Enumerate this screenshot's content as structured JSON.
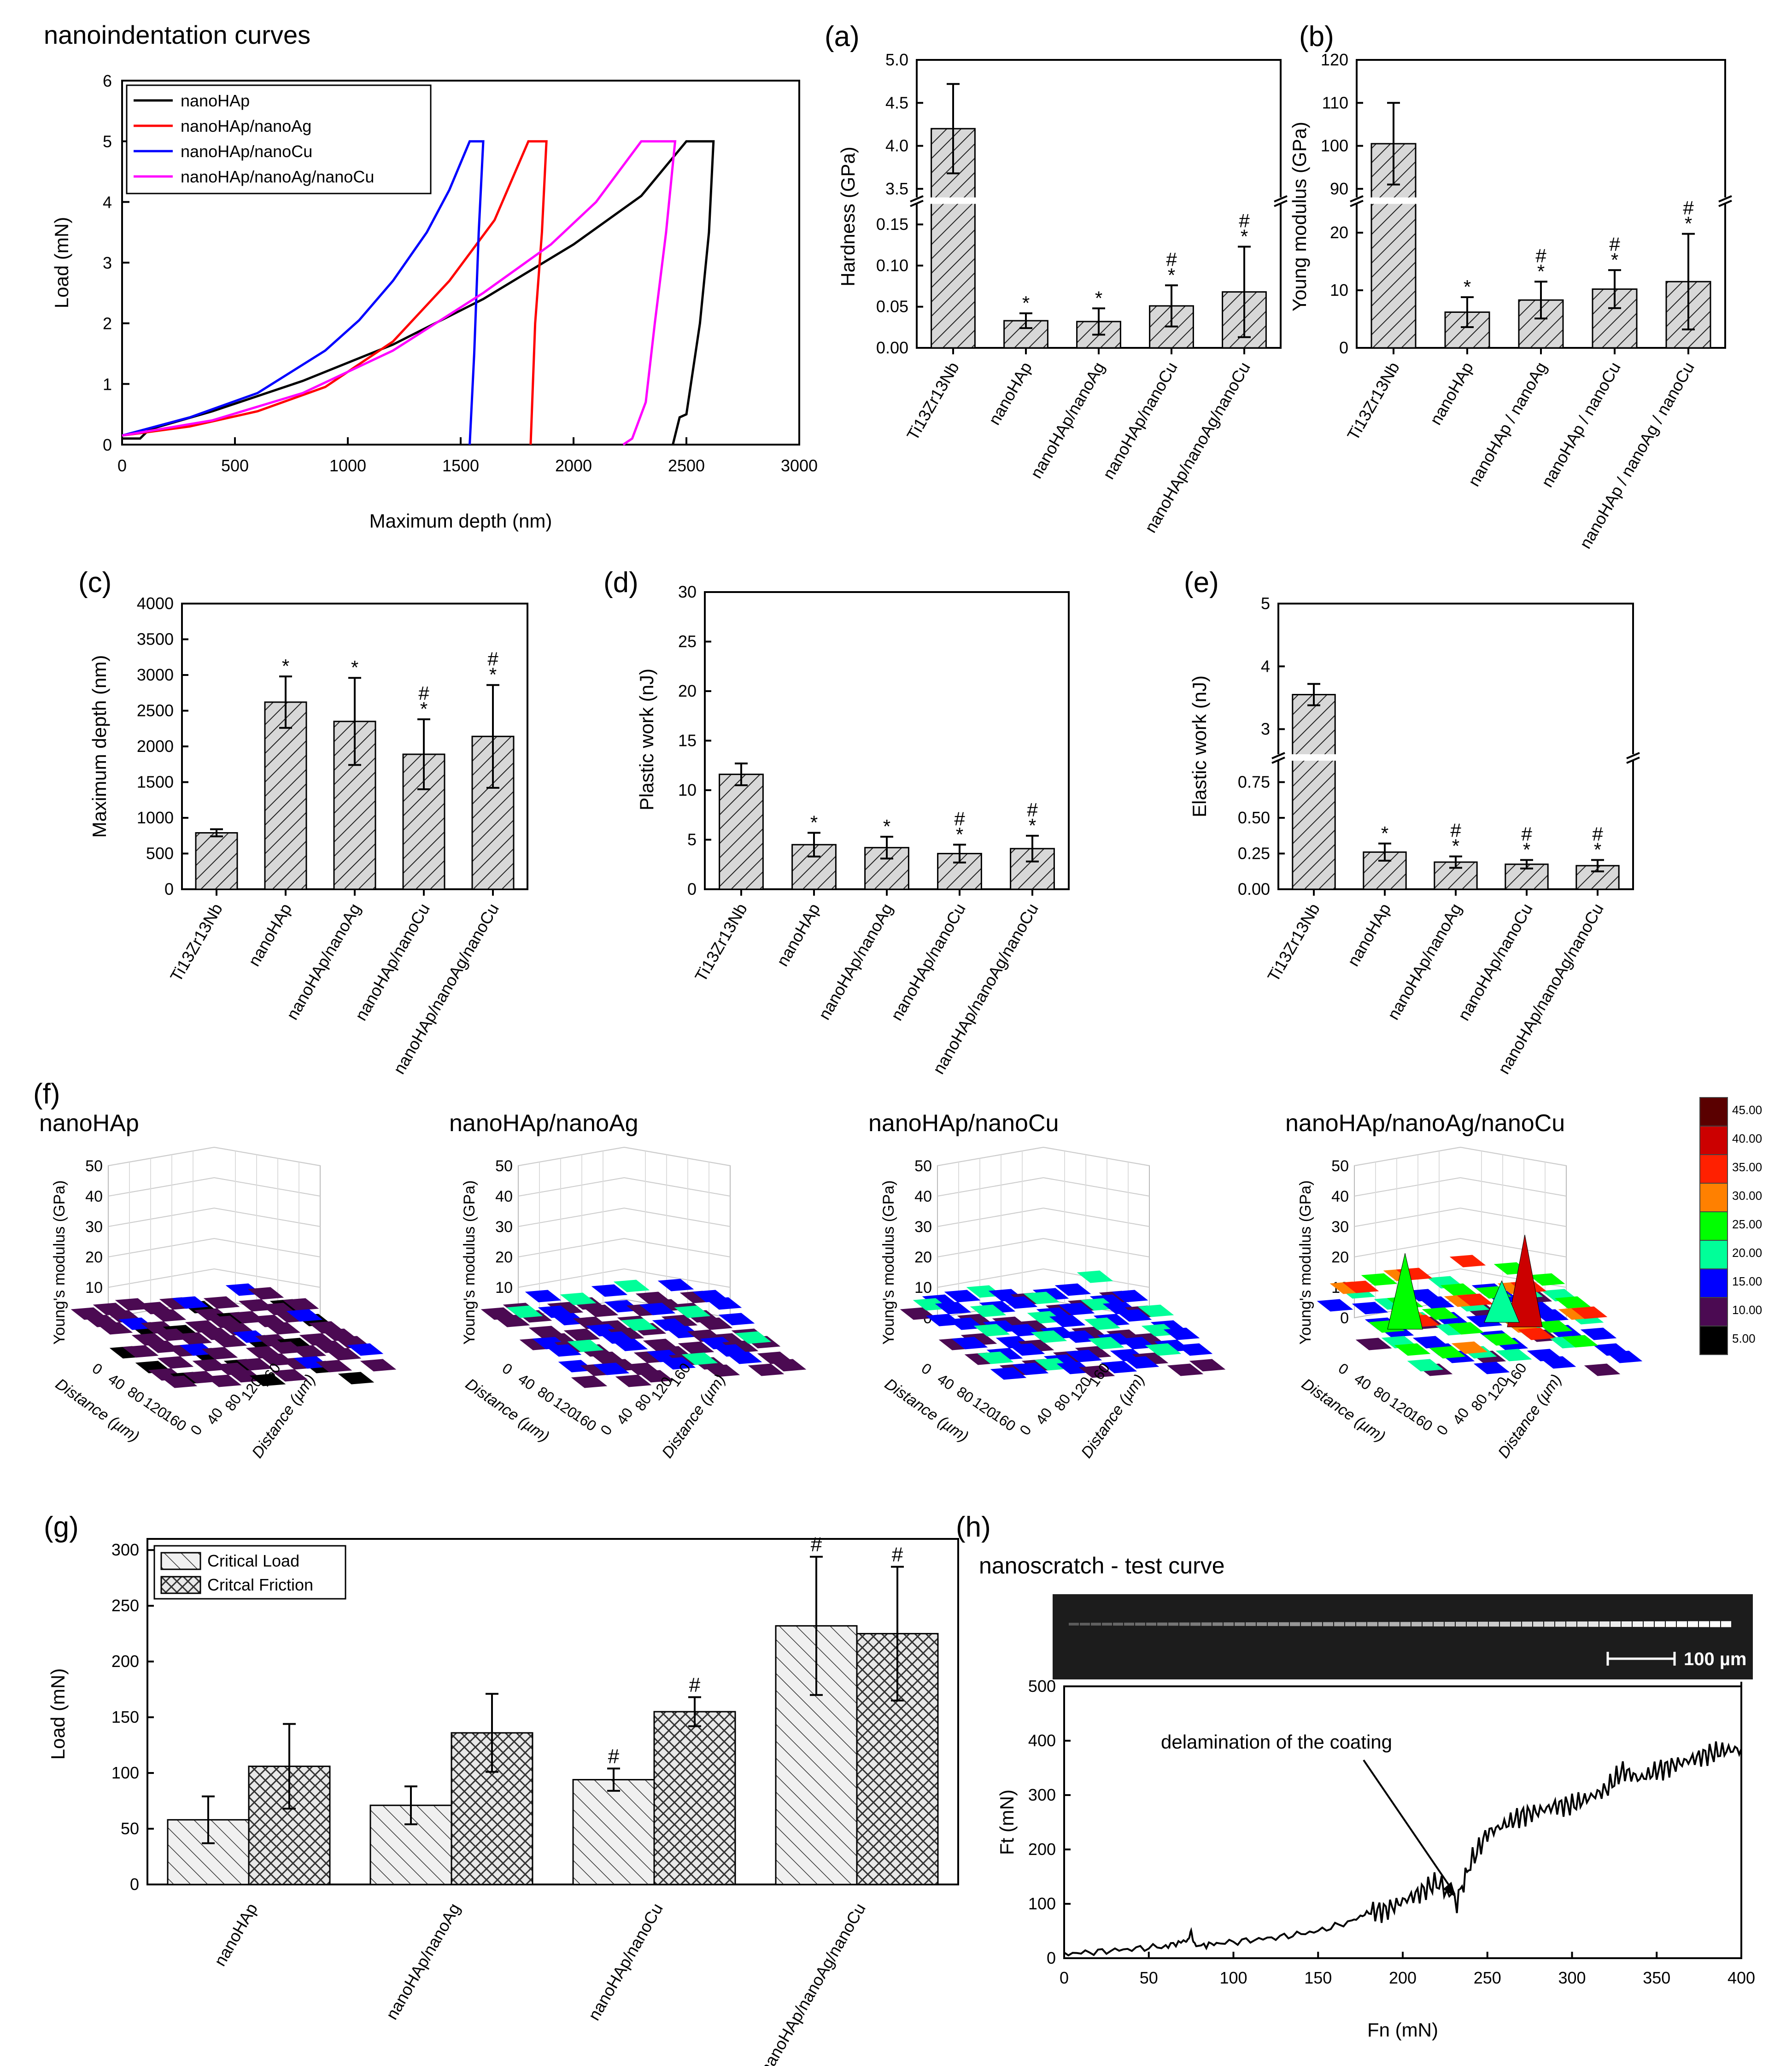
{
  "colors": {
    "black": "#000000",
    "red": "#ff0000",
    "blue": "#0000ff",
    "magenta": "#ff00ff",
    "purple": "#4b0a52",
    "bar_fill": "#d8d8d8",
    "scale_dark": "#2b2b2b",
    "green": "#00ff00",
    "aqua": "#00ff99",
    "orange": "#ff8000",
    "darkred": "#5a0000"
  },
  "chart_data": [
    {
      "id": "curves",
      "type": "line",
      "title": "nanoindentation curves",
      "xlabel": "Maximum depth (nm)",
      "ylabel": "Load (mN)",
      "xlim": [
        0,
        3000
      ],
      "ylim": [
        0,
        6
      ],
      "xticks": [
        "0",
        "500",
        "1000",
        "1500",
        "2000",
        "2500",
        "3000"
      ],
      "yticks": [
        "0",
        "1",
        "2",
        "3",
        "4",
        "5",
        "6"
      ],
      "series": [
        {
          "name": "nanoHAp",
          "color": "#000000",
          "points": [
            [
              0,
              0.1
            ],
            [
              80,
              0.1
            ],
            [
              120,
              0.25
            ],
            [
              400,
              0.55
            ],
            [
              800,
              1.05
            ],
            [
              1200,
              1.65
            ],
            [
              1600,
              2.4
            ],
            [
              2000,
              3.3
            ],
            [
              2300,
              4.1
            ],
            [
              2500,
              5.0
            ],
            [
              2620,
              5.0
            ],
            [
              2600,
              3.5
            ],
            [
              2560,
              2.0
            ],
            [
              2520,
              1.0
            ],
            [
              2500,
              0.5
            ],
            [
              2470,
              0.45
            ],
            [
              2440,
              0.0
            ]
          ]
        },
        {
          "name": "nanoHAp/nanoAg",
          "color": "#ff0000",
          "points": [
            [
              0,
              0.15
            ],
            [
              300,
              0.3
            ],
            [
              600,
              0.55
            ],
            [
              900,
              0.95
            ],
            [
              1200,
              1.7
            ],
            [
              1450,
              2.7
            ],
            [
              1650,
              3.7
            ],
            [
              1800,
              5.0
            ],
            [
              1880,
              5.0
            ],
            [
              1860,
              3.5
            ],
            [
              1830,
              2.0
            ],
            [
              1810,
              0.0
            ]
          ]
        },
        {
          "name": "nanoHAp/nanoCu",
          "color": "#0000ff",
          "points": [
            [
              0,
              0.15
            ],
            [
              300,
              0.45
            ],
            [
              600,
              0.85
            ],
            [
              900,
              1.55
            ],
            [
              1050,
              2.05
            ],
            [
              1200,
              2.7
            ],
            [
              1350,
              3.5
            ],
            [
              1450,
              4.2
            ],
            [
              1540,
              5.0
            ],
            [
              1600,
              5.0
            ],
            [
              1580,
              3.5
            ],
            [
              1560,
              1.5
            ],
            [
              1540,
              0.0
            ]
          ]
        },
        {
          "name": "nanoHAp/nanoAg/nanoCu",
          "color": "#ff00ff",
          "points": [
            [
              0,
              0.15
            ],
            [
              400,
              0.4
            ],
            [
              800,
              0.85
            ],
            [
              1200,
              1.55
            ],
            [
              1600,
              2.5
            ],
            [
              1900,
              3.3
            ],
            [
              2100,
              4.0
            ],
            [
              2300,
              5.0
            ],
            [
              2450,
              5.0
            ],
            [
              2410,
              3.5
            ],
            [
              2360,
              2.0
            ],
            [
              2320,
              0.7
            ],
            [
              2260,
              0.1
            ],
            [
              2220,
              0.0
            ]
          ]
        }
      ]
    },
    {
      "id": "a",
      "panel": "(a)",
      "type": "bar",
      "ylabel": "Hardness (GPa)",
      "categories": [
        "Ti13Zr13Nb",
        "nanoHAp",
        "nanoHAp/nanoAg",
        "nanoHAp/nanoCu",
        "nanoHAp/nanoAg/nanoCu"
      ],
      "values": [
        4.2,
        0.033,
        0.032,
        0.051,
        0.068
      ],
      "errors": [
        0.52,
        0.009,
        0.016,
        0.025,
        0.055
      ],
      "marks": [
        "",
        "*",
        "*",
        "#*",
        "#*"
      ],
      "lower_ylim": [
        0,
        0.175
      ],
      "lower_ticks": [
        "0.00",
        "0.05",
        "0.10",
        "0.15"
      ],
      "upper_ylim": [
        3.4,
        5.0
      ],
      "upper_ticks": [
        "3.5",
        "4.0",
        "4.5",
        "5.0"
      ],
      "break": true
    },
    {
      "id": "b",
      "panel": "(b)",
      "type": "bar",
      "ylabel": "Young modulus (GPa)",
      "categories": [
        "Ti13Zr13Nb",
        "nanoHAp",
        "nanoHAp / nanoAg",
        "nanoHAp / nanoCu",
        "nanoHAp / nanoAg / nanoCu"
      ],
      "values": [
        100.5,
        6.2,
        8.3,
        10.2,
        11.5
      ],
      "errors": [
        9.5,
        2.6,
        3.2,
        3.3,
        8.3
      ],
      "marks": [
        "",
        "*",
        "#*",
        "#*",
        "#*"
      ],
      "lower_ylim": [
        0,
        25
      ],
      "lower_ticks": [
        "0",
        "10",
        "20"
      ],
      "upper_ylim": [
        88,
        120
      ],
      "upper_ticks": [
        "90",
        "100",
        "110",
        "120"
      ],
      "break": true
    },
    {
      "id": "c",
      "panel": "(c)",
      "type": "bar",
      "ylabel": "Maximum depth (nm)",
      "categories": [
        "Ti13Zr13Nb",
        "nanoHAp",
        "nanoHAp/nanoAg",
        "nanoHAp/nanoCu",
        "nanoHAp/nanoAg/nanoCu"
      ],
      "values": [
        790,
        2620,
        2350,
        1890,
        2140
      ],
      "errors": [
        50,
        360,
        610,
        490,
        720
      ],
      "marks": [
        "",
        "*",
        "*",
        "#*",
        "#*"
      ],
      "ylim": [
        0,
        4000
      ],
      "yticks": [
        "0",
        "500",
        "1000",
        "1500",
        "2000",
        "2500",
        "3000",
        "3500",
        "4000"
      ]
    },
    {
      "id": "d",
      "panel": "(d)",
      "type": "bar",
      "ylabel": "Plastic work (nJ)",
      "categories": [
        "Ti13Zr13Nb",
        "nanoHAp",
        "nanoHAp/nanoAg",
        "nanoHAp/nanoCu",
        "nanoHAp/nanoAg/nanoCu"
      ],
      "values": [
        11.6,
        4.5,
        4.2,
        3.6,
        4.1
      ],
      "errors": [
        1.1,
        1.2,
        1.1,
        0.9,
        1.3
      ],
      "marks": [
        "",
        "*",
        "*",
        "#*",
        "#*"
      ],
      "ylim": [
        0,
        30
      ],
      "yticks": [
        "0",
        "5",
        "10",
        "15",
        "20",
        "25",
        "30"
      ]
    },
    {
      "id": "e",
      "panel": "(e)",
      "type": "bar",
      "ylabel": "Elastic work (nJ)",
      "categories": [
        "Ti13Zr13Nb",
        "nanoHAp",
        "nanoHAp/nanoAg",
        "nanoHAp/nanoCu",
        "nanoHAp/nanoAg/nanoCu"
      ],
      "values": [
        3.55,
        0.26,
        0.19,
        0.175,
        0.165
      ],
      "errors": [
        0.17,
        0.06,
        0.04,
        0.03,
        0.04
      ],
      "marks": [
        "",
        "*",
        "#*",
        "#*",
        "#*"
      ],
      "lower_ylim": [
        0,
        0.9
      ],
      "lower_ticks": [
        "0.00",
        "0.25",
        "0.50",
        "0.75"
      ],
      "upper_ylim": [
        2.6,
        5.0
      ],
      "upper_ticks": [
        "3",
        "4",
        "5"
      ],
      "break": true
    },
    {
      "id": "f",
      "panel": "(f)",
      "type": "heatmap",
      "panels": [
        "nanoHAp",
        "nanoHAp/nanoAg",
        "nanoHAp/nanoCu",
        "nanoHAp/nanoAg/nanoCu"
      ],
      "zlabel": "Young's modulus (GPa)",
      "xlabel": "Distance (µm)",
      "ylabel": "Distance (µm)",
      "zticks": [
        "0",
        "10",
        "20",
        "30",
        "40",
        "50"
      ],
      "front_ticks": [
        "0",
        "40",
        "80",
        "120",
        "160"
      ],
      "side_ticks": [
        "0",
        "40",
        "80",
        "120",
        "160"
      ],
      "colorbar": {
        "labels": [
          "5.00",
          "10.00",
          "15.00",
          "20.00",
          "25.00",
          "30.00",
          "35.00",
          "40.00",
          "45.00"
        ],
        "colors": [
          "#000000",
          "#4b0a52",
          "#0000ff",
          "#00ff99",
          "#00ff00",
          "#ff8000",
          "#ff2000",
          "#cc0000",
          "#5a0000"
        ]
      }
    },
    {
      "id": "g",
      "panel": "(g)",
      "type": "bar",
      "ylabel": "Load (mN)",
      "categories": [
        "nanoHAp",
        "nanoHAp/nanoAg",
        "nanoHAp/nanoCu",
        "nanoHAp/nanoAg/nanoCu"
      ],
      "series": [
        {
          "name": "Critical Load",
          "values": [
            58,
            71,
            94,
            232
          ],
          "errors": [
            21,
            17,
            10,
            62
          ],
          "marks": [
            "",
            "",
            "#",
            "#"
          ]
        },
        {
          "name": "Critcal Friction",
          "values": [
            106,
            136,
            155,
            225
          ],
          "errors": [
            38,
            35,
            13,
            60
          ],
          "marks": [
            "",
            "",
            "#",
            "#"
          ]
        }
      ],
      "ylim": [
        0,
        310
      ],
      "yticks": [
        "0",
        "50",
        "100",
        "150",
        "200",
        "250",
        "300"
      ]
    },
    {
      "id": "h",
      "panel": "(h)",
      "type": "line",
      "title": "nanoscratch - test curve",
      "xlabel": "Fn (mN)",
      "ylabel": "Ft (mN)",
      "xlim": [
        0,
        400
      ],
      "ylim": [
        0,
        500
      ],
      "xticks": [
        "0",
        "50",
        "100",
        "150",
        "200",
        "250",
        "300",
        "350",
        "400"
      ],
      "yticks": [
        "0",
        "100",
        "200",
        "300",
        "400",
        "500"
      ],
      "annotation": "delamination of the coating",
      "annotation_point": [
        232,
        105
      ],
      "scale_bar": "100 µm",
      "points": [
        [
          0,
          8
        ],
        [
          20,
          12
        ],
        [
          40,
          17
        ],
        [
          60,
          22
        ],
        [
          72,
          32
        ],
        [
          75,
          45
        ],
        [
          78,
          22
        ],
        [
          90,
          27
        ],
        [
          110,
          33
        ],
        [
          130,
          40
        ],
        [
          150,
          50
        ],
        [
          170,
          68
        ],
        [
          180,
          85
        ],
        [
          190,
          88
        ],
        [
          200,
          105
        ],
        [
          210,
          120
        ],
        [
          220,
          140
        ],
        [
          232,
          105
        ],
        [
          240,
          175
        ],
        [
          250,
          230
        ],
        [
          260,
          245
        ],
        [
          270,
          262
        ],
        [
          280,
          270
        ],
        [
          290,
          280
        ],
        [
          300,
          282
        ],
        [
          310,
          295
        ],
        [
          320,
          310
        ],
        [
          330,
          345
        ],
        [
          340,
          330
        ],
        [
          350,
          345
        ],
        [
          360,
          355
        ],
        [
          370,
          365
        ],
        [
          380,
          375
        ],
        [
          390,
          382
        ],
        [
          400,
          385
        ]
      ]
    }
  ]
}
